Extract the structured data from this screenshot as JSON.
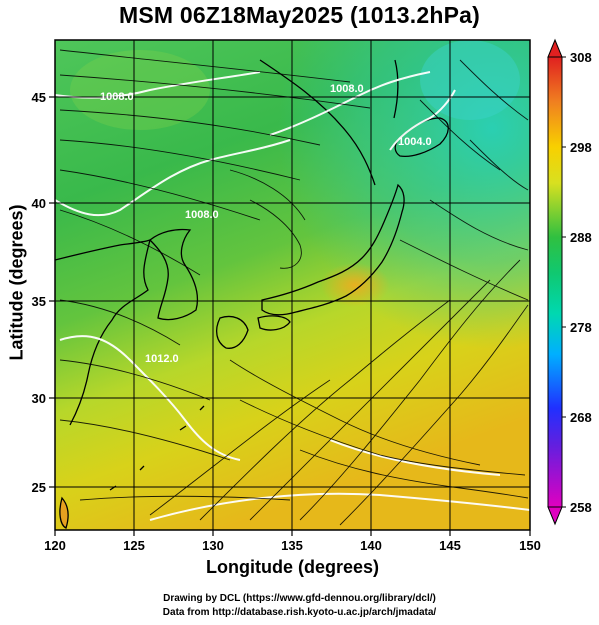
{
  "title": "MSM 06Z18May2025 (1013.2hPa)",
  "x_axis": {
    "label": "Longitude (degrees)",
    "ticks": [
      "120",
      "125",
      "130",
      "135",
      "140",
      "145",
      "150"
    ],
    "range": [
      120,
      150
    ]
  },
  "y_axis": {
    "label": "Latitude  (degrees)",
    "ticks": [
      "25",
      "30",
      "35",
      "40",
      "45"
    ],
    "range": [
      22.5,
      47.6
    ]
  },
  "colorbar": {
    "ticks": [
      "308",
      "298",
      "288",
      "278",
      "268",
      "258"
    ],
    "range": [
      258,
      308
    ],
    "colors": [
      "#e000c0",
      "#2020ff",
      "#00c8ff",
      "#00d8a0",
      "#20c040",
      "#c8e020",
      "#f8c800",
      "#f06020",
      "#e02020"
    ]
  },
  "contours": [
    {
      "label": "1008.0"
    },
    {
      "label": "1008.0"
    },
    {
      "label": "1004.0"
    },
    {
      "label": "1008.0"
    },
    {
      "label": "1012.0"
    }
  ],
  "credits": {
    "line1": "Drawing by DCL (https://www.gfd-dennou.org/library/dcl/)",
    "line2": "Data from http://database.rish.kyoto-u.ac.jp/arch/jmadata/"
  },
  "colors": {
    "land_outline": "#000000",
    "contour_line": "#ffffff",
    "streamline": "#000000",
    "grid": "#000000"
  }
}
